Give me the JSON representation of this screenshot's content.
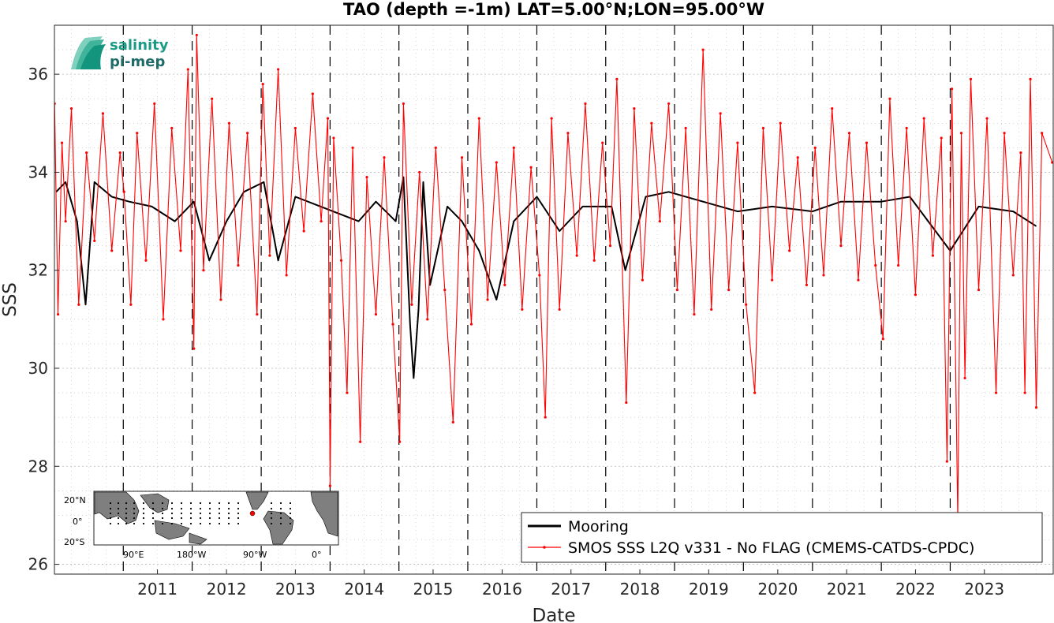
{
  "chart_data": {
    "type": "line",
    "title": "TAO (depth =-1m) LAT=5.00°N;LON=95.00°W",
    "xlabel": "Date",
    "ylabel": "SSS",
    "xlim": [
      "2010-01-01",
      "2024-06-30"
    ],
    "ylim": [
      25.8,
      37.0
    ],
    "grid": true,
    "x_ticks": [
      "2011",
      "2012",
      "2013",
      "2014",
      "2015",
      "2016",
      "2017",
      "2018",
      "2019",
      "2020",
      "2021",
      "2022",
      "2023"
    ],
    "y_ticks": [
      "26",
      "28",
      "30",
      "32",
      "34",
      "36"
    ],
    "year_separators": [
      "2011-01-01",
      "2012-01-01",
      "2013-01-01",
      "2014-01-01",
      "2015-01-01",
      "2016-01-01",
      "2017-01-01",
      "2018-01-01",
      "2019-01-01",
      "2020-01-01",
      "2021-01-01",
      "2022-01-01",
      "2023-01-01"
    ],
    "legend_position": "bottom-right",
    "series": [
      {
        "name": "Mooring",
        "color": "#000000",
        "points": [
          [
            "2010-01-10",
            33.6
          ],
          [
            "2010-03-01",
            33.8
          ],
          [
            "2010-05-01",
            33.0
          ],
          [
            "2010-06-15",
            31.3
          ],
          [
            "2010-08-01",
            33.8
          ],
          [
            "2010-11-01",
            33.5
          ],
          [
            "2011-02-01",
            33.4
          ],
          [
            "2011-06-01",
            33.3
          ],
          [
            "2011-10-01",
            33.0
          ],
          [
            "2012-01-10",
            33.4
          ],
          [
            "2012-04-01",
            32.2
          ],
          [
            "2012-07-01",
            33.0
          ],
          [
            "2012-10-01",
            33.6
          ],
          [
            "2013-01-15",
            33.8
          ],
          [
            "2013-04-01",
            32.2
          ],
          [
            "2013-07-01",
            33.5
          ],
          [
            "2014-06-01",
            33.0
          ],
          [
            "2014-09-01",
            33.4
          ],
          [
            "2014-12-15",
            33.0
          ],
          [
            "2015-01-25",
            33.9
          ],
          [
            "2015-03-01",
            30.9
          ],
          [
            "2015-03-20",
            29.8
          ],
          [
            "2015-04-15",
            31.2
          ],
          [
            "2015-05-10",
            33.8
          ],
          [
            "2015-06-15",
            31.7
          ],
          [
            "2015-09-15",
            33.3
          ],
          [
            "2015-12-01",
            33.0
          ],
          [
            "2016-03-01",
            32.4
          ],
          [
            "2016-06-01",
            31.4
          ],
          [
            "2016-09-01",
            33.0
          ],
          [
            "2017-01-01",
            33.5
          ],
          [
            "2017-05-01",
            32.8
          ],
          [
            "2017-09-01",
            33.3
          ],
          [
            "2018-02-01",
            33.3
          ],
          [
            "2018-04-15",
            32.0
          ],
          [
            "2018-08-01",
            33.5
          ],
          [
            "2018-12-01",
            33.6
          ],
          [
            "2019-06-01",
            33.4
          ],
          [
            "2019-12-01",
            33.2
          ],
          [
            "2020-06-01",
            33.3
          ],
          [
            "2021-01-01",
            33.2
          ],
          [
            "2021-06-01",
            33.4
          ],
          [
            "2022-01-01",
            33.4
          ],
          [
            "2022-06-01",
            33.5
          ],
          [
            "2023-01-01",
            32.4
          ],
          [
            "2023-06-01",
            33.3
          ],
          [
            "2023-12-01",
            33.2
          ],
          [
            "2024-04-01",
            32.9
          ]
        ]
      },
      {
        "name": "SMOS SSS L2Q v331 - No FLAG  (CMEMS-CATDS-CPDC)",
        "color": "#ff0000",
        "points": [
          [
            "2010-01-02",
            35.4
          ],
          [
            "2010-01-20",
            31.1
          ],
          [
            "2010-02-10",
            34.6
          ],
          [
            "2010-03-01",
            33.0
          ],
          [
            "2010-04-01",
            35.3
          ],
          [
            "2010-05-10",
            31.3
          ],
          [
            "2010-06-20",
            34.4
          ],
          [
            "2010-08-01",
            32.6
          ],
          [
            "2010-09-15",
            35.2
          ],
          [
            "2010-11-01",
            32.4
          ],
          [
            "2010-12-15",
            34.4
          ],
          [
            "2011-01-05",
            33.6
          ],
          [
            "2011-02-10",
            31.3
          ],
          [
            "2011-03-15",
            34.8
          ],
          [
            "2011-05-01",
            32.2
          ],
          [
            "2011-06-15",
            35.4
          ],
          [
            "2011-08-01",
            31.0
          ],
          [
            "2011-09-15",
            34.9
          ],
          [
            "2011-11-01",
            32.4
          ],
          [
            "2011-12-10",
            36.1
          ],
          [
            "2012-01-10",
            30.4
          ],
          [
            "2012-01-25",
            36.8
          ],
          [
            "2012-03-01",
            32.0
          ],
          [
            "2012-04-15",
            35.5
          ],
          [
            "2012-06-01",
            31.4
          ],
          [
            "2012-07-15",
            35.0
          ],
          [
            "2012-09-01",
            32.1
          ],
          [
            "2012-10-20",
            34.8
          ],
          [
            "2012-12-10",
            31.1
          ],
          [
            "2013-01-10",
            35.8
          ],
          [
            "2013-02-15",
            32.3
          ],
          [
            "2013-04-01",
            36.1
          ],
          [
            "2013-05-15",
            31.9
          ],
          [
            "2013-07-01",
            34.9
          ],
          [
            "2013-08-15",
            32.8
          ],
          [
            "2013-10-01",
            35.6
          ],
          [
            "2013-11-15",
            33.0
          ],
          [
            "2013-12-20",
            35.1
          ],
          [
            "2014-01-01",
            27.6
          ],
          [
            "2014-01-20",
            34.7
          ],
          [
            "2014-03-01",
            32.2
          ],
          [
            "2014-04-01",
            29.5
          ],
          [
            "2014-05-01",
            34.5
          ],
          [
            "2014-06-10",
            28.5
          ],
          [
            "2014-07-15",
            33.9
          ],
          [
            "2014-09-01",
            31.1
          ],
          [
            "2014-10-15",
            34.3
          ],
          [
            "2014-11-30",
            30.9
          ],
          [
            "2015-01-05",
            28.5
          ],
          [
            "2015-01-25",
            35.4
          ],
          [
            "2015-03-10",
            31.3
          ],
          [
            "2015-04-20",
            34.0
          ],
          [
            "2015-06-01",
            31.0
          ],
          [
            "2015-07-15",
            34.5
          ],
          [
            "2015-09-01",
            31.6
          ],
          [
            "2015-10-15",
            28.9
          ],
          [
            "2015-12-01",
            34.3
          ],
          [
            "2016-01-20",
            30.9
          ],
          [
            "2016-03-01",
            35.1
          ],
          [
            "2016-04-15",
            31.4
          ],
          [
            "2016-06-01",
            34.2
          ],
          [
            "2016-07-15",
            31.7
          ],
          [
            "2016-09-01",
            34.5
          ],
          [
            "2016-10-15",
            31.2
          ],
          [
            "2016-12-01",
            34.1
          ],
          [
            "2017-01-15",
            31.9
          ],
          [
            "2017-02-15",
            29.0
          ],
          [
            "2017-03-20",
            35.1
          ],
          [
            "2017-05-01",
            31.2
          ],
          [
            "2017-06-15",
            34.8
          ],
          [
            "2017-08-01",
            32.3
          ],
          [
            "2017-09-15",
            35.4
          ],
          [
            "2017-11-01",
            32.2
          ],
          [
            "2017-12-15",
            34.6
          ],
          [
            "2018-01-25",
            32.5
          ],
          [
            "2018-03-01",
            35.9
          ],
          [
            "2018-04-20",
            29.3
          ],
          [
            "2018-06-01",
            35.3
          ],
          [
            "2018-07-15",
            31.8
          ],
          [
            "2018-09-01",
            35.0
          ],
          [
            "2018-10-15",
            33.0
          ],
          [
            "2018-12-01",
            35.4
          ],
          [
            "2019-01-15",
            31.6
          ],
          [
            "2019-03-01",
            34.9
          ],
          [
            "2019-04-15",
            31.1
          ],
          [
            "2019-06-01",
            36.5
          ],
          [
            "2019-07-15",
            31.2
          ],
          [
            "2019-09-01",
            35.2
          ],
          [
            "2019-10-15",
            31.6
          ],
          [
            "2019-12-01",
            34.6
          ],
          [
            "2020-01-15",
            31.3
          ],
          [
            "2020-03-01",
            29.5
          ],
          [
            "2020-04-15",
            34.9
          ],
          [
            "2020-06-01",
            31.8
          ],
          [
            "2020-07-15",
            35.0
          ],
          [
            "2020-09-01",
            32.4
          ],
          [
            "2020-10-15",
            34.3
          ],
          [
            "2020-12-01",
            31.7
          ],
          [
            "2021-01-15",
            34.5
          ],
          [
            "2021-03-01",
            31.9
          ],
          [
            "2021-04-15",
            35.3
          ],
          [
            "2021-06-01",
            32.5
          ],
          [
            "2021-07-15",
            34.8
          ],
          [
            "2021-09-01",
            31.8
          ],
          [
            "2021-10-15",
            34.6
          ],
          [
            "2021-12-01",
            32.1
          ],
          [
            "2022-01-10",
            30.6
          ],
          [
            "2022-02-15",
            35.5
          ],
          [
            "2022-04-01",
            32.1
          ],
          [
            "2022-05-15",
            34.9
          ],
          [
            "2022-07-01",
            31.5
          ],
          [
            "2022-08-15",
            35.1
          ],
          [
            "2022-10-01",
            32.3
          ],
          [
            "2022-11-15",
            34.7
          ],
          [
            "2022-12-15",
            28.1
          ],
          [
            "2023-01-10",
            35.7
          ],
          [
            "2023-02-10",
            26.9
          ],
          [
            "2023-03-01",
            34.8
          ],
          [
            "2023-03-20",
            29.8
          ],
          [
            "2023-04-20",
            35.9
          ],
          [
            "2023-06-01",
            31.6
          ],
          [
            "2023-07-15",
            35.1
          ],
          [
            "2023-09-01",
            29.5
          ],
          [
            "2023-10-15",
            34.8
          ],
          [
            "2023-12-01",
            31.9
          ],
          [
            "2024-01-10",
            34.4
          ],
          [
            "2024-02-01",
            29.5
          ],
          [
            "2024-03-01",
            35.9
          ],
          [
            "2024-04-01",
            29.2
          ],
          [
            "2024-05-01",
            34.8
          ],
          [
            "2024-06-25",
            34.2
          ]
        ]
      }
    ]
  },
  "legend": {
    "mooring_label": "Mooring",
    "smos_label": "SMOS SSS L2Q v331 - No FLAG  (CMEMS-CATDS-CPDC)"
  },
  "logo": {
    "line1": "salinity",
    "line2": "pi-mep"
  },
  "inset_map": {
    "lat_labels": [
      "20°N",
      "0°",
      "20°S"
    ],
    "lon_labels": [
      "90°E",
      "180°W",
      "90°W",
      "0°"
    ],
    "marker_color": "#ff0000"
  }
}
